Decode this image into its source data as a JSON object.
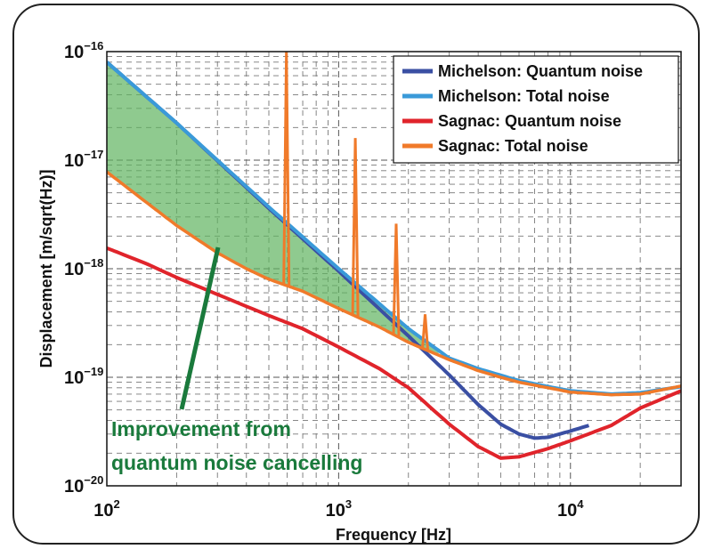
{
  "chart_data": {
    "type": "line",
    "xlabel": "Frequency [Hz]",
    "ylabel": "Displacement [m/sqrt(Hz)]",
    "xscale": "log",
    "yscale": "log",
    "xlim": [
      100,
      30000
    ],
    "ylim": [
      1e-20,
      1e-16
    ],
    "grid": true,
    "legend_position": "top-right",
    "x_ticks": [
      {
        "base": "10",
        "exp": "2",
        "value": 100
      },
      {
        "base": "10",
        "exp": "3",
        "value": 1000
      },
      {
        "base": "10",
        "exp": "4",
        "value": 10000
      }
    ],
    "y_ticks": [
      {
        "base": "10",
        "exp": "−16",
        "value": 1e-16
      },
      {
        "base": "10",
        "exp": "−17",
        "value": 1e-17
      },
      {
        "base": "10",
        "exp": "−18",
        "value": 1e-18
      },
      {
        "base": "10",
        "exp": "−19",
        "value": 1e-19
      },
      {
        "base": "10",
        "exp": "−20",
        "value": 1e-20
      }
    ],
    "series": [
      {
        "name": "Michelson: Quantum noise",
        "color": "#3a4fa3",
        "width": 4,
        "x": [
          100,
          200,
          500,
          1000,
          2000,
          3000,
          4000,
          5000,
          6000,
          7000,
          8000,
          10000,
          12000
        ],
        "y": [
          8e-17,
          2.2e-17,
          3.6e-18,
          9.5e-19,
          2.4e-19,
          1.05e-19,
          5.6e-20,
          3.7e-20,
          3e-20,
          2.75e-20,
          2.8e-20,
          3.2e-20,
          3.6e-20
        ]
      },
      {
        "name": "Michelson: Total noise",
        "color": "#3a9ad9",
        "width": 4,
        "x": [
          100,
          200,
          500,
          1000,
          2000,
          3000,
          4000,
          6000,
          8000,
          10000,
          15000,
          20000,
          30000
        ],
        "y": [
          8e-17,
          2.2e-17,
          3.7e-18,
          1e-18,
          2.8e-19,
          1.5e-19,
          1.2e-19,
          9.3e-20,
          8.2e-20,
          7.5e-20,
          7e-20,
          7.2e-20,
          8.2e-20
        ]
      },
      {
        "name": "Sagnac: Quantum noise",
        "color": "#e0242b",
        "width": 4,
        "x": [
          100,
          150,
          200,
          300,
          500,
          700,
          1000,
          1500,
          2000,
          3000,
          4000,
          5000,
          6000,
          8000,
          10000,
          15000,
          20000,
          30000
        ],
        "y": [
          1.55e-18,
          1.1e-18,
          8.3e-19,
          5.8e-19,
          3.7e-19,
          2.8e-19,
          1.9e-19,
          1.2e-19,
          8e-20,
          3.7e-20,
          2.3e-20,
          1.8e-20,
          1.85e-20,
          2.2e-20,
          2.6e-20,
          3.6e-20,
          5.2e-20,
          7.5e-20
        ]
      },
      {
        "name": "Sagnac: Total noise",
        "color": "#f07a2a",
        "width": 3.5,
        "x": [
          100,
          150,
          200,
          300,
          400,
          500,
          700,
          1000,
          1500,
          2000,
          3000,
          4000,
          5000,
          6000,
          8000,
          10000,
          15000,
          20000,
          30000
        ],
        "y": [
          7.8e-18,
          4e-18,
          2.5e-18,
          1.4e-18,
          1e-18,
          8e-19,
          6.2e-19,
          4.3e-19,
          2.9e-19,
          2.1e-19,
          1.45e-19,
          1.15e-19,
          1e-19,
          9e-20,
          8e-20,
          7.3e-20,
          6.9e-20,
          7e-20,
          8.3e-20
        ],
        "spikes": [
          {
            "x": 595,
            "y": 1e-16
          },
          {
            "x": 1180,
            "y": 1.6e-17
          },
          {
            "x": 1770,
            "y": 2.6e-18
          },
          {
            "x": 2360,
            "y": 3.8e-19
          }
        ]
      }
    ],
    "annotation": {
      "lines": [
        "Improvement from",
        "quantum noise cancelling"
      ],
      "color": "#1a7a3c",
      "fill_color": "#5fb35f"
    }
  }
}
